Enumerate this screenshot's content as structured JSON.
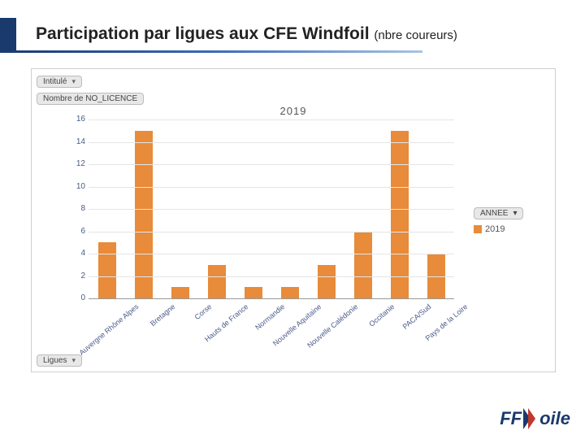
{
  "title": {
    "main": "Participation par ligues aux CFE Windfoil",
    "sub": "(nbre coureurs)"
  },
  "pills": {
    "top": "Intitulé",
    "second": "Nombre de NO_LICENCE",
    "bottom": "Ligues"
  },
  "chart": {
    "type": "bar",
    "title": "2019",
    "ylim": [
      0,
      16
    ],
    "ytick_step": 2,
    "bar_color": "#e88b3a",
    "grid_color": "#e5e5e5",
    "axis_color": "#999999",
    "label_color": "#4a5a8a",
    "background_color": "#ffffff",
    "categories": [
      "Auvergne Rhône Alpes",
      "Bretagne",
      "Corse",
      "Hauts de France",
      "Normandie",
      "Nouvelle Aquitaine",
      "Nouvelle Calédonie",
      "Occitanie",
      "PACA/Sud",
      "Pays de la Loire"
    ],
    "values": [
      5,
      15,
      1,
      3,
      1,
      1,
      3,
      6,
      15,
      4
    ]
  },
  "legend": {
    "header": "ANNEE",
    "items": [
      {
        "label": "2019",
        "color": "#e88b3a"
      }
    ]
  },
  "logo": {
    "text_left": "FF",
    "text_right": "oile"
  }
}
